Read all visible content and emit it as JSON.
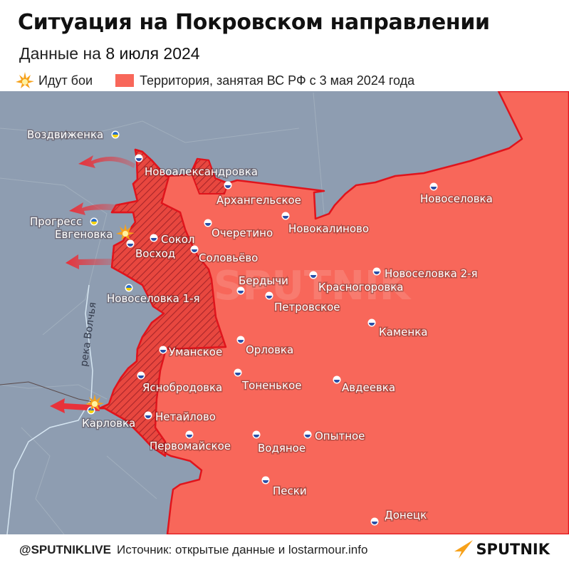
{
  "header": {
    "title": "Ситуация на Покровском направлении",
    "subtitle_prefix": "Данные на",
    "subtitle_date": "8 июля 2024"
  },
  "legend": {
    "fighting_icon": "explosion-icon",
    "fighting_label": "Идут бои",
    "territory_label": "Территория, занятая ВС РФ с 3 мая 2024 года",
    "territory_color": "#f8675a"
  },
  "colors": {
    "map_background": "#8e9db1",
    "occupied": "#f8675a",
    "occupied_since_may": "#e8473f",
    "front_line": "#e0141c",
    "arrow": "#e8323a"
  },
  "map": {
    "river_label": "река Волчья",
    "watermark": "SPUTNIK",
    "cities": [
      {
        "name": "Воздвиженка",
        "side": "ua"
      },
      {
        "name": "Новоалександровка",
        "side": "ru"
      },
      {
        "name": "Архангельское",
        "side": "ru"
      },
      {
        "name": "Новоселовка",
        "side": "ru"
      },
      {
        "name": "Прогресс",
        "side": "ua"
      },
      {
        "name": "Евгеновка",
        "side": "none"
      },
      {
        "name": "Сокол",
        "side": "ru"
      },
      {
        "name": "Восход",
        "side": "ru"
      },
      {
        "name": "Очеретино",
        "side": "ru"
      },
      {
        "name": "Новокалиново",
        "side": "ru"
      },
      {
        "name": "Соловьёво",
        "side": "ru"
      },
      {
        "name": "Бердычи",
        "side": "ru"
      },
      {
        "name": "Красногоровка",
        "side": "ru"
      },
      {
        "name": "Новоселовка 2-я",
        "side": "ru"
      },
      {
        "name": "Новоселовка 1-я",
        "side": "ua"
      },
      {
        "name": "Петровское",
        "side": "ru"
      },
      {
        "name": "Каменка",
        "side": "ru"
      },
      {
        "name": "Уманское",
        "side": "ru"
      },
      {
        "name": "Орловка",
        "side": "ru"
      },
      {
        "name": "Яснобродовка",
        "side": "ru"
      },
      {
        "name": "Тоненькое",
        "side": "ru"
      },
      {
        "name": "Авдеевка",
        "side": "ru"
      },
      {
        "name": "Карловка",
        "side": "ua"
      },
      {
        "name": "Нетайлово",
        "side": "ru"
      },
      {
        "name": "Первомайское",
        "side": "ru"
      },
      {
        "name": "Водяное",
        "side": "ru"
      },
      {
        "name": "Опытное",
        "side": "ru"
      },
      {
        "name": "Пески",
        "side": "ru"
      },
      {
        "name": "Донецк",
        "side": "ru"
      }
    ]
  },
  "footer": {
    "handle": "@SPUTNIKLIVE",
    "source": "Источник: открытые данные и lostarmour.info",
    "logo_text": "SPUTNIK",
    "logo_color": "#f7a11a"
  }
}
